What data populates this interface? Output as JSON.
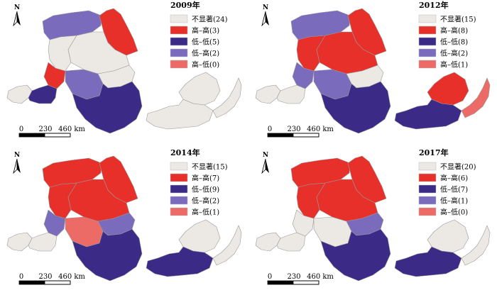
{
  "colors": {
    "not_significant": "#ece8e4",
    "high_high": "#e8302a",
    "low_low": "#3b2a86",
    "low_high": "#7b6bbd",
    "high_low": "#ec6b67"
  },
  "north_label": "N",
  "scale": {
    "labels": [
      "0",
      "230",
      "460 km"
    ]
  },
  "panels": [
    {
      "title": "2009年",
      "legend": [
        {
          "key": "not_significant",
          "label": "不显著(24)"
        },
        {
          "key": "high_high",
          "label": "高–高(3)"
        },
        {
          "key": "low_low",
          "label": "低–低(5)"
        },
        {
          "key": "low_high",
          "label": "低–高(2)"
        },
        {
          "key": "high_low",
          "label": "高–低(0)"
        }
      ],
      "regions": {
        "nw_cap": "low_high",
        "ne_top": "high_high",
        "centre_north": "not_significant",
        "centre_left": "not_significant",
        "small_west": "high_high",
        "tiny_mid": "low_high",
        "west_tail": "not_significant",
        "west_block": "low_low",
        "centre": "not_significant",
        "central_south": "low_low",
        "east_ne": "not_significant",
        "east_south": "not_significant",
        "far_east": "not_significant"
      }
    },
    {
      "title": "2012年",
      "legend": [
        {
          "key": "not_significant",
          "label": "不显著(15)"
        },
        {
          "key": "high_high",
          "label": "高–高(8)"
        },
        {
          "key": "low_low",
          "label": "低–低(8)"
        },
        {
          "key": "low_high",
          "label": "低–高(2)"
        },
        {
          "key": "high_low",
          "label": "高–低(1)"
        }
      ],
      "regions": {
        "nw_cap": "low_high",
        "ne_top": "high_high",
        "centre_north": "high_high",
        "centre_left": "high_high",
        "small_west": "low_high",
        "tiny_mid": "low_high",
        "west_tail": "not_significant",
        "west_block": "not_significant",
        "centre": "not_significant",
        "central_south": "low_low",
        "east_ne": "high_high",
        "east_south": "low_low",
        "far_east": "high_low"
      }
    },
    {
      "title": "2014年",
      "legend": [
        {
          "key": "not_significant",
          "label": "不显著(15)"
        },
        {
          "key": "high_high",
          "label": "高–高(7)"
        },
        {
          "key": "low_low",
          "label": "低–低(9)"
        },
        {
          "key": "low_high",
          "label": "低–高(2)"
        },
        {
          "key": "high_low",
          "label": "高–低(1)"
        }
      ],
      "regions": {
        "nw_cap": "high_high",
        "ne_top": "high_high",
        "centre_north": "high_high",
        "centre_left": "high_high",
        "small_west": "low_high",
        "tiny_mid": "high_low",
        "west_tail": "not_significant",
        "west_block": "not_significant",
        "centre": "low_high",
        "central_south": "low_low",
        "east_ne": "not_significant",
        "east_south": "low_low",
        "far_east": "not_significant"
      }
    },
    {
      "title": "2017年",
      "legend": [
        {
          "key": "not_significant",
          "label": "不显著(20)"
        },
        {
          "key": "high_high",
          "label": "高–高(6)"
        },
        {
          "key": "low_low",
          "label": "低–低(7)"
        },
        {
          "key": "low_high",
          "label": "低–高(1)"
        },
        {
          "key": "high_low",
          "label": "高–低(0)"
        }
      ],
      "regions": {
        "nw_cap": "high_high",
        "ne_top": "high_high",
        "centre_north": "high_high",
        "centre_left": "high_high",
        "small_west": "not_significant",
        "tiny_mid": "not_significant",
        "west_tail": "not_significant",
        "west_block": "not_significant",
        "centre": "low_high",
        "central_south": "low_low",
        "east_ne": "not_significant",
        "east_south": "low_low",
        "far_east": "not_significant"
      }
    }
  ]
}
